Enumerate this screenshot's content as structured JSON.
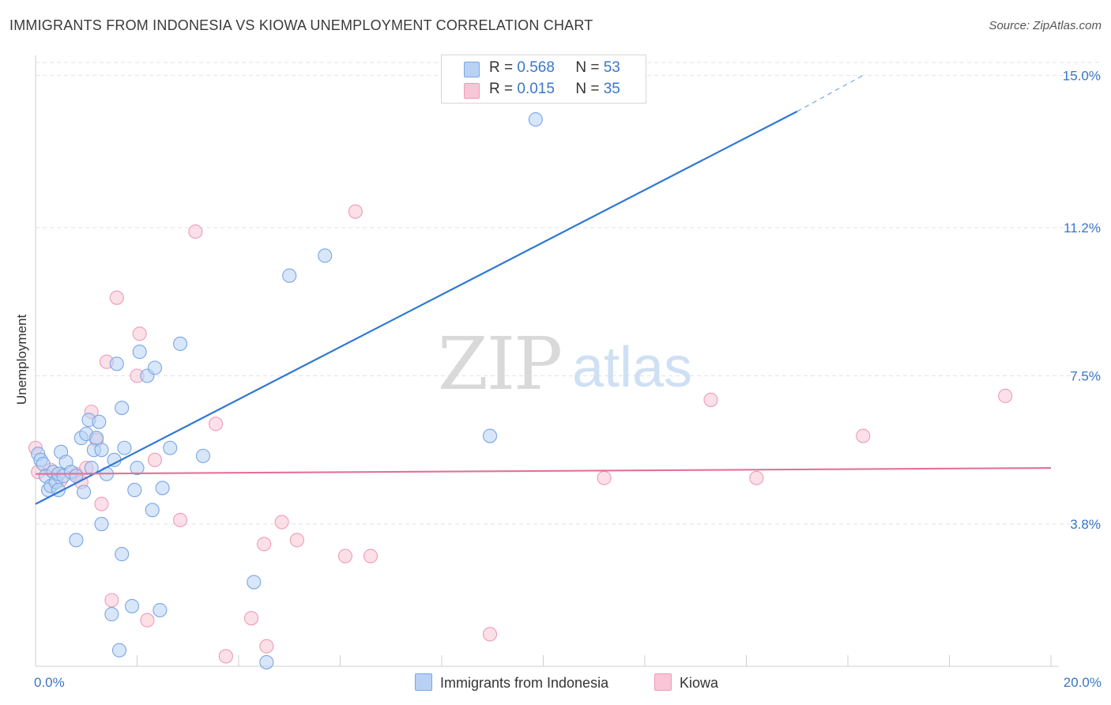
{
  "title": "IMMIGRANTS FROM INDONESIA VS KIOWA UNEMPLOYMENT CORRELATION CHART",
  "source": "Source: ZipAtlas.com",
  "watermark": {
    "zip": "ZIP",
    "atlas": "atlas"
  },
  "colors": {
    "blue_fill": "#b8d1f5",
    "blue_stroke": "#7aa6e3",
    "blue_line": "#2f78d2",
    "pink_fill": "#f8c6d6",
    "pink_stroke": "#ef9bb8",
    "pink_line": "#e3729a",
    "tick_label": "#3a76c9",
    "grid": "#e2e2e2"
  },
  "legend": {
    "rows": [
      {
        "r_label": "R =",
        "r_value": "0.568",
        "n_label": "N =",
        "n_value": "53"
      },
      {
        "r_label": "R =",
        "r_value": "0.015",
        "n_label": "N =",
        "n_value": "35"
      }
    ]
  },
  "chart_data": {
    "type": "scatter",
    "title": "IMMIGRANTS FROM INDONESIA VS KIOWA UNEMPLOYMENT CORRELATION CHART",
    "xlabel": "",
    "ylabel": "Unemployment",
    "xlim": [
      0,
      20
    ],
    "ylim": [
      0.25,
      15.5
    ],
    "x_tick_labels": [
      {
        "value": 0,
        "label": "0.0%"
      },
      {
        "value": 20,
        "label": "20.0%"
      }
    ],
    "y_tick_labels": [
      {
        "value": 3.8,
        "label": "3.8%"
      },
      {
        "value": 7.5,
        "label": "7.5%"
      },
      {
        "value": 11.2,
        "label": "11.2%"
      },
      {
        "value": 15.0,
        "label": "15.0%"
      }
    ],
    "x_minor_ticks": [
      2,
      4,
      6,
      8,
      10,
      12,
      14,
      16,
      18,
      20
    ],
    "series": [
      {
        "name": "Immigrants from Indonesia",
        "color": "#b8d1f5",
        "trend": {
          "x0": 0,
          "y0": 4.3,
          "x1": 15,
          "y1": 14.1,
          "dash_to_x": 16.3,
          "dash_to_y": 15.0
        },
        "points": [
          [
            0.05,
            5.55
          ],
          [
            0.1,
            5.4
          ],
          [
            0.15,
            5.3
          ],
          [
            0.2,
            5.0
          ],
          [
            0.25,
            4.65
          ],
          [
            0.3,
            4.75
          ],
          [
            0.35,
            5.1
          ],
          [
            0.4,
            4.85
          ],
          [
            0.45,
            5.05
          ],
          [
            0.5,
            5.6
          ],
          [
            0.55,
            5.0
          ],
          [
            0.6,
            5.35
          ],
          [
            0.7,
            5.1
          ],
          [
            0.8,
            5.0
          ],
          [
            0.9,
            5.95
          ],
          [
            0.95,
            4.6
          ],
          [
            1.0,
            6.05
          ],
          [
            1.05,
            6.4
          ],
          [
            1.1,
            5.2
          ],
          [
            1.15,
            5.65
          ],
          [
            1.2,
            5.95
          ],
          [
            1.25,
            6.35
          ],
          [
            1.3,
            5.65
          ],
          [
            1.4,
            5.05
          ],
          [
            1.5,
            1.55
          ],
          [
            1.55,
            5.4
          ],
          [
            1.6,
            7.8
          ],
          [
            1.7,
            6.7
          ],
          [
            1.75,
            5.7
          ],
          [
            1.9,
            1.75
          ],
          [
            1.95,
            4.65
          ],
          [
            2.0,
            5.2
          ],
          [
            2.05,
            8.1
          ],
          [
            2.2,
            7.5
          ],
          [
            2.3,
            4.15
          ],
          [
            2.35,
            7.7
          ],
          [
            2.5,
            4.7
          ],
          [
            2.65,
            5.7
          ],
          [
            2.85,
            8.3
          ],
          [
            3.3,
            5.5
          ],
          [
            4.3,
            2.35
          ],
          [
            5.0,
            10.0
          ],
          [
            5.7,
            10.5
          ],
          [
            8.95,
            6.0
          ],
          [
            9.85,
            13.9
          ],
          [
            1.65,
            0.65
          ],
          [
            2.45,
            1.65
          ],
          [
            1.7,
            3.05
          ],
          [
            1.3,
            3.8
          ],
          [
            0.8,
            3.4
          ],
          [
            0.45,
            4.65
          ],
          [
            4.55,
            0.35
          ],
          [
            10.6,
            14.8
          ]
        ]
      },
      {
        "name": "Kiowa",
        "color": "#f8c6d6",
        "trend": {
          "x0": 0,
          "y0": 5.05,
          "x1": 20,
          "y1": 5.2
        },
        "points": [
          [
            0.0,
            5.7
          ],
          [
            0.05,
            5.1
          ],
          [
            0.3,
            5.15
          ],
          [
            0.5,
            4.9
          ],
          [
            0.8,
            5.05
          ],
          [
            1.0,
            5.2
          ],
          [
            1.1,
            6.6
          ],
          [
            1.2,
            5.9
          ],
          [
            1.3,
            4.3
          ],
          [
            1.4,
            7.85
          ],
          [
            1.6,
            9.45
          ],
          [
            2.0,
            7.5
          ],
          [
            2.05,
            8.55
          ],
          [
            2.35,
            5.4
          ],
          [
            2.85,
            3.9
          ],
          [
            3.15,
            11.1
          ],
          [
            3.55,
            6.3
          ],
          [
            4.25,
            1.45
          ],
          [
            4.5,
            3.3
          ],
          [
            4.85,
            3.85
          ],
          [
            5.15,
            3.4
          ],
          [
            6.1,
            3.0
          ],
          [
            6.6,
            3.0
          ],
          [
            6.3,
            11.6
          ],
          [
            8.95,
            1.05
          ],
          [
            11.2,
            4.95
          ],
          [
            13.3,
            6.9
          ],
          [
            14.2,
            4.95
          ],
          [
            16.3,
            6.0
          ],
          [
            19.1,
            7.0
          ],
          [
            1.5,
            1.9
          ],
          [
            2.2,
            1.4
          ],
          [
            3.75,
            0.5
          ],
          [
            4.55,
            0.75
          ],
          [
            0.9,
            4.85
          ]
        ]
      }
    ]
  },
  "bottom_legend": [
    {
      "label": "Immigrants from Indonesia"
    },
    {
      "label": "Kiowa"
    }
  ]
}
